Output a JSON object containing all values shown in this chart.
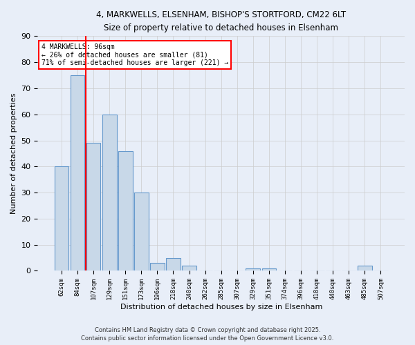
{
  "title_line1": "4, MARKWELLS, ELSENHAM, BISHOP'S STORTFORD, CM22 6LT",
  "title_line2": "Size of property relative to detached houses in Elsenham",
  "xlabel": "Distribution of detached houses by size in Elsenham",
  "ylabel": "Number of detached properties",
  "categories": [
    "62sqm",
    "84sqm",
    "107sqm",
    "129sqm",
    "151sqm",
    "173sqm",
    "196sqm",
    "218sqm",
    "240sqm",
    "262sqm",
    "285sqm",
    "307sqm",
    "329sqm",
    "351sqm",
    "374sqm",
    "396sqm",
    "418sqm",
    "440sqm",
    "463sqm",
    "485sqm",
    "507sqm"
  ],
  "values": [
    40,
    75,
    49,
    60,
    46,
    30,
    3,
    5,
    2,
    0,
    0,
    0,
    1,
    1,
    0,
    0,
    0,
    0,
    0,
    2,
    0
  ],
  "bar_color": "#c8d8e8",
  "bar_edge_color": "#6699cc",
  "red_line_x": 1.5,
  "annotation_text": "4 MARKWELLS: 96sqm\n← 26% of detached houses are smaller (81)\n71% of semi-detached houses are larger (221) →",
  "annotation_box_color": "white",
  "annotation_box_edge_color": "red",
  "ylim": [
    0,
    90
  ],
  "yticks": [
    0,
    10,
    20,
    30,
    40,
    50,
    60,
    70,
    80,
    90
  ],
  "grid_color": "#cccccc",
  "background_color": "#e8eef8",
  "footer_line1": "Contains HM Land Registry data © Crown copyright and database right 2025.",
  "footer_line2": "Contains public sector information licensed under the Open Government Licence v3.0."
}
